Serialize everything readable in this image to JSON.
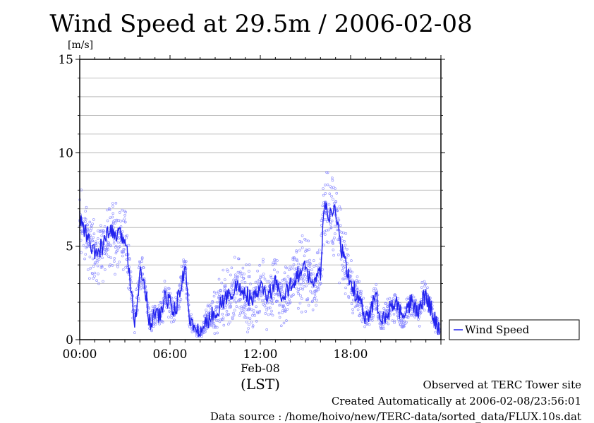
{
  "title": "Wind Speed at 29.5m / 2006-02-08",
  "chart_data": {
    "type": "scatter",
    "title": "Wind Speed at 29.5m / 2006-02-08",
    "ylabel": "[m/s]",
    "xlabel": "(LST)",
    "x_date_label": "Feb-08",
    "xlim": [
      "00:00",
      "24:00"
    ],
    "ylim": [
      0,
      15
    ],
    "x_ticks": [
      "00:00",
      "06:00",
      "12:00",
      "18:00"
    ],
    "y_ticks": [
      "0",
      "5",
      "10",
      "15"
    ],
    "grid": true,
    "legend_position": "right",
    "series": [
      {
        "name": "Wind Speed",
        "x": [
          "00:00",
          "00:30",
          "01:00",
          "01:30",
          "02:00",
          "02:30",
          "03:00",
          "03:20",
          "03:40",
          "04:00",
          "04:20",
          "04:40",
          "05:00",
          "05:20",
          "05:40",
          "06:00",
          "06:20",
          "06:40",
          "07:00",
          "07:20",
          "07:40",
          "08:00",
          "08:20",
          "08:40",
          "09:00",
          "09:30",
          "10:00",
          "10:30",
          "11:00",
          "11:30",
          "12:00",
          "12:30",
          "13:00",
          "13:30",
          "14:00",
          "14:30",
          "15:00",
          "15:30",
          "16:00",
          "16:10",
          "16:20",
          "16:40",
          "17:00",
          "17:20",
          "17:40",
          "18:00",
          "18:20",
          "18:40",
          "19:00",
          "19:20",
          "19:40",
          "20:00",
          "20:30",
          "21:00",
          "21:30",
          "22:00",
          "22:30",
          "23:00",
          "23:30",
          "23:55"
        ],
        "values": [
          6.5,
          5.5,
          4.5,
          5.0,
          5.8,
          5.5,
          5.5,
          3.5,
          1.0,
          3.5,
          3.0,
          0.8,
          1.5,
          1.2,
          2.3,
          2.0,
          1.5,
          2.5,
          4.0,
          1.0,
          0.5,
          0.3,
          0.8,
          1.2,
          1.5,
          2.0,
          2.5,
          2.8,
          2.5,
          2.0,
          2.8,
          2.3,
          3.0,
          2.0,
          3.0,
          3.5,
          3.8,
          3.0,
          3.5,
          6.5,
          7.0,
          6.5,
          7.0,
          5.0,
          4.0,
          3.0,
          2.5,
          2.0,
          1.0,
          1.5,
          2.5,
          0.8,
          1.5,
          2.0,
          1.0,
          2.0,
          1.5,
          2.5,
          1.2,
          0.5
        ],
        "scatter_spread": [
          1.5,
          1.3,
          1.2,
          1.2,
          1.4,
          1.5,
          1.4,
          1.0,
          0.6,
          1.0,
          0.8,
          0.4,
          0.6,
          0.5,
          0.7,
          0.6,
          0.6,
          0.7,
          0.8,
          0.5,
          0.3,
          0.3,
          0.5,
          0.8,
          1.0,
          1.2,
          1.4,
          1.4,
          1.4,
          1.3,
          1.4,
          1.3,
          1.4,
          1.2,
          1.4,
          1.4,
          1.5,
          1.3,
          1.4,
          1.8,
          2.0,
          1.8,
          1.8,
          1.4,
          1.2,
          1.0,
          0.9,
          0.8,
          0.5,
          0.6,
          0.8,
          0.4,
          0.6,
          0.7,
          0.5,
          0.7,
          0.6,
          0.8,
          0.5,
          0.4
        ]
      }
    ]
  },
  "colors": {
    "series": "#2222ee",
    "scatter": "#8888ff",
    "grid": "#aaaaaa"
  },
  "footer": {
    "line1": "Observed at TERC Tower site",
    "line2": "Created Automatically at 2006-02-08/23:56:01",
    "line3": "Data source : /home/hoivo/new/TERC-data/sorted_data/FLUX.10s.dat"
  }
}
